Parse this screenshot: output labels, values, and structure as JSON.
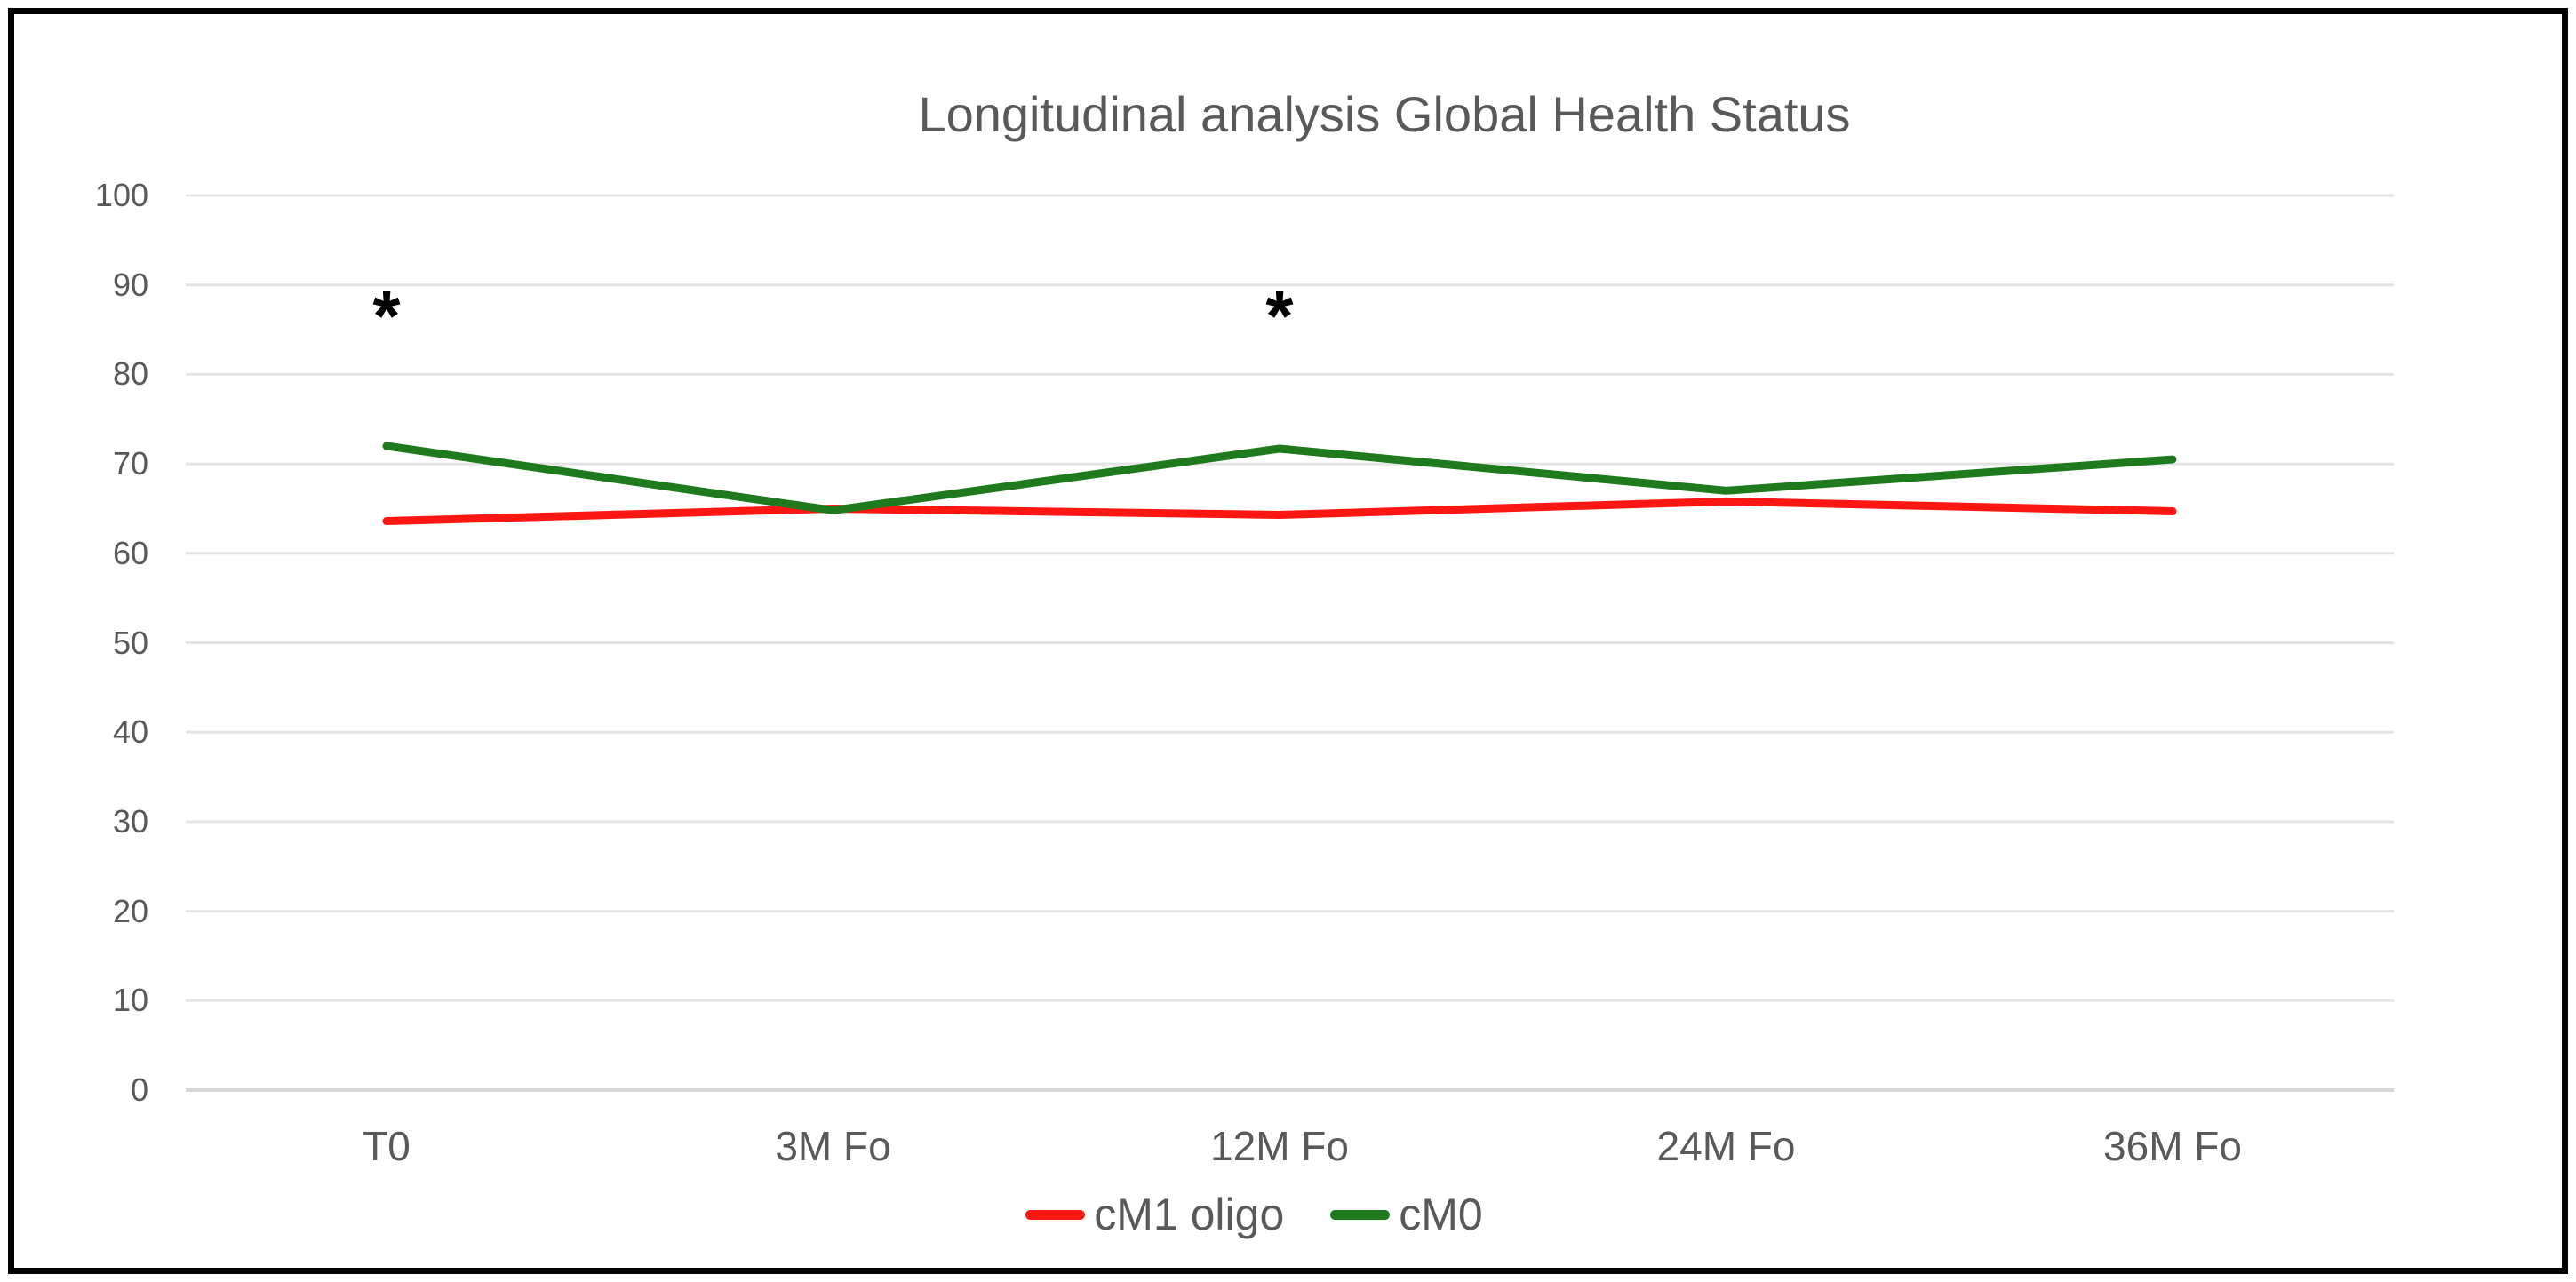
{
  "figure": {
    "background": "#ffffff",
    "border_color": "#000000"
  },
  "chart_data": {
    "type": "line",
    "title": "Longitudinal analysis Global Health Status",
    "xlabel": "",
    "ylabel": "",
    "categories": [
      "T0",
      "3M Fo",
      "12M Fo",
      "24M Fo",
      "36M Fo"
    ],
    "series": [
      {
        "name": "cM1 oligo",
        "color": "#fc1712",
        "values": [
          63.6,
          65.0,
          64.3,
          65.8,
          64.7
        ]
      },
      {
        "name": "cM0",
        "color": "#1f7a1e",
        "values": [
          72.0,
          64.8,
          71.7,
          67.0,
          70.5
        ]
      }
    ],
    "ylim": [
      0,
      100
    ],
    "yticks": [
      0,
      10,
      20,
      30,
      40,
      50,
      60,
      70,
      80,
      90,
      100
    ],
    "grid": "horizontal",
    "legend_position": "bottom-center",
    "annotations": [
      {
        "text": "*",
        "category_index": 0,
        "y": 88
      },
      {
        "text": "*",
        "category_index": 2,
        "y": 88
      }
    ],
    "colors": {
      "grid": "#e4e4e4",
      "axis": "#d6d6d6",
      "tick_label": "#595959",
      "title": "#595959",
      "annotation": "#000000"
    }
  }
}
